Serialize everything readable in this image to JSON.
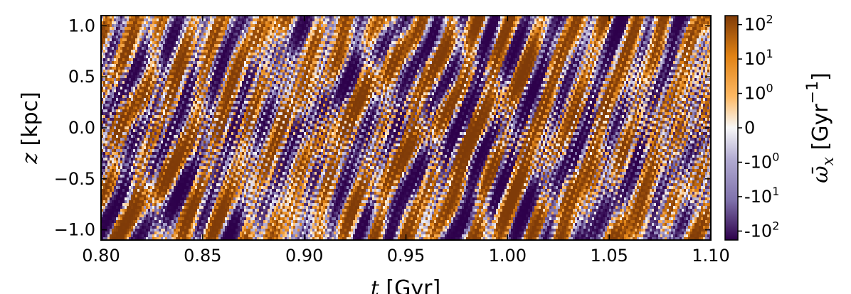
{
  "chart_data": {
    "type": "heatmap",
    "title": "",
    "xlabel": "t [Gyr]",
    "xlabel_parts": {
      "symbol": "t",
      "unit": " [Gyr]"
    },
    "ylabel": "z [kpc]",
    "ylabel_parts": {
      "symbol": "z",
      "unit": " [kpc]"
    },
    "xlim": [
      0.8,
      1.1
    ],
    "ylim": [
      -1.1,
      1.1
    ],
    "x_ticks": [
      0.8,
      0.85,
      0.9,
      0.95,
      1.0,
      1.05,
      1.1
    ],
    "x_tick_labels": [
      "0.80",
      "0.85",
      "0.90",
      "0.95",
      "1.00",
      "1.05",
      "1.10"
    ],
    "y_ticks": [
      1.0,
      0.5,
      0.0,
      -0.5,
      -1.0
    ],
    "y_tick_labels": [
      "1.0",
      "0.5",
      "0.0",
      "−0.5",
      "−1.0"
    ],
    "colorbar": {
      "label": "ω̄_x [Gyr^-1]",
      "label_parts": {
        "symbol": "ω̄",
        "sub": "x",
        "unit_pre": "  [Gyr",
        "sup": "−1",
        "unit_post": "]"
      },
      "scale": "symlog",
      "ticks": [
        100,
        10,
        1,
        0,
        -1,
        -10,
        -100
      ],
      "tick_labels": [
        {
          "base": "10",
          "exp": "2"
        },
        {
          "base": "10",
          "exp": "1"
        },
        {
          "base": "10",
          "exp": "0"
        },
        {
          "base": "0",
          "exp": ""
        },
        {
          "base": "-10",
          "exp": "0"
        },
        {
          "base": "-10",
          "exp": "1"
        },
        {
          "base": "-10",
          "exp": "2"
        }
      ],
      "colors": {
        "max": "#7f3b08",
        "high": "#e08214",
        "mid_pos": "#fdb863",
        "zero": "#f7f7f7",
        "mid_neg": "#b2abd2",
        "low": "#8073ac",
        "min": "#2d004b"
      }
    }
  }
}
